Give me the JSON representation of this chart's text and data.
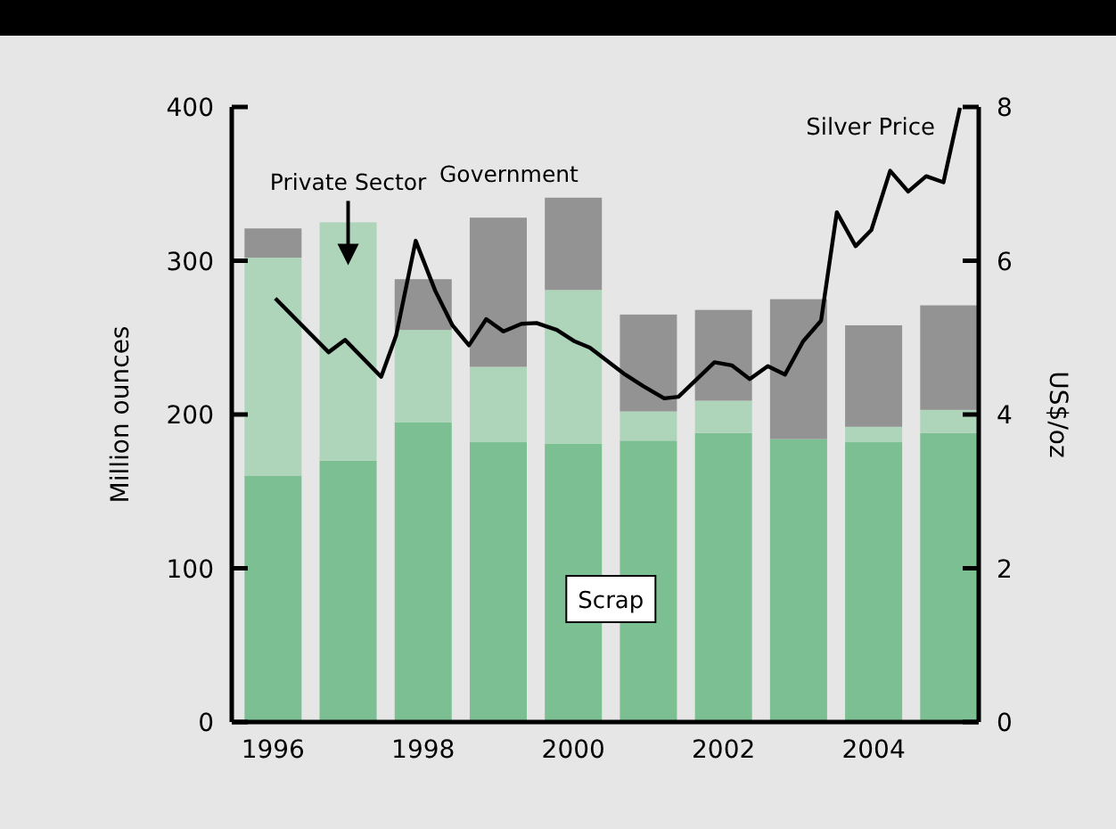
{
  "chart_data": {
    "type": "bar",
    "stacked": true,
    "x": [
      1996,
      1997,
      1998,
      1999,
      2000,
      2001,
      2002,
      2003,
      2004,
      2005
    ],
    "xlim": [
      1995.45,
      2005.4
    ],
    "xticks": [
      1996,
      1998,
      2000,
      2002,
      2004
    ],
    "ylim": [
      0,
      400
    ],
    "yticks": [
      0,
      100,
      200,
      300,
      400
    ],
    "y2lim": [
      0,
      8
    ],
    "y2ticks": [
      0,
      2,
      4,
      6,
      8
    ],
    "ylabel": "Million ounces",
    "y2label": "US$/oz",
    "grid": false,
    "series": [
      {
        "name": "Scrap",
        "color": "#7bbf93",
        "values": [
          160,
          170,
          195,
          182,
          181,
          183,
          188,
          184,
          182,
          188
        ]
      },
      {
        "name": "Private Sector",
        "color": "#aed5b9",
        "values": [
          142,
          155,
          60,
          49,
          100,
          19,
          21,
          0,
          10,
          15
        ]
      },
      {
        "name": "Government",
        "color": "#939393",
        "values": [
          19,
          0,
          33,
          97,
          60,
          63,
          59,
          91,
          66,
          68
        ]
      },
      {
        "name": "Silver Price",
        "type": "line",
        "axis": "y2",
        "color": "#000000",
        "x": [
          1996.03,
          1996.74,
          1996.96,
          1997.44,
          1997.64,
          1997.9,
          1998.16,
          1998.39,
          1998.61,
          1998.84,
          1999.07,
          1999.31,
          1999.51,
          1999.78,
          2000.02,
          2000.22,
          2000.69,
          2000.93,
          2001.21,
          2001.4,
          2001.88,
          2002.11,
          2002.35,
          2002.59,
          2002.82,
          2003.06,
          2003.3,
          2003.51,
          2003.76,
          2003.97,
          2004.22,
          2004.46,
          2004.7,
          2004.93,
          2005.15
        ],
        "values": [
          5.51,
          4.81,
          4.97,
          4.49,
          5.03,
          6.26,
          5.61,
          5.16,
          4.9,
          5.24,
          5.08,
          5.18,
          5.19,
          5.1,
          4.95,
          4.87,
          4.52,
          4.37,
          4.21,
          4.23,
          4.68,
          4.64,
          4.46,
          4.63,
          4.52,
          4.95,
          5.22,
          6.63,
          6.19,
          6.4,
          7.17,
          6.9,
          7.1,
          7.02,
          7.99
        ]
      }
    ]
  }
}
